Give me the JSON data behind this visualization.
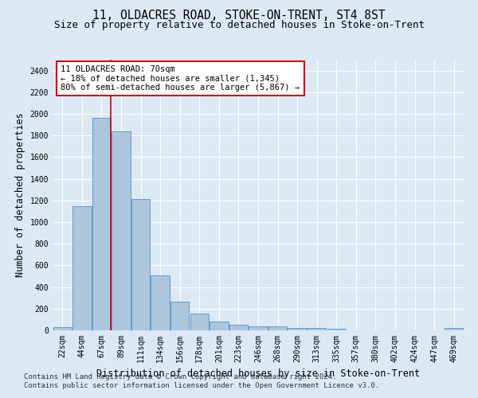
{
  "title": "11, OLDACRES ROAD, STOKE-ON-TRENT, ST4 8ST",
  "subtitle": "Size of property relative to detached houses in Stoke-on-Trent",
  "xlabel": "Distribution of detached houses by size in Stoke-on-Trent",
  "ylabel": "Number of detached properties",
  "bin_labels": [
    "22sqm",
    "44sqm",
    "67sqm",
    "89sqm",
    "111sqm",
    "134sqm",
    "156sqm",
    "178sqm",
    "201sqm",
    "223sqm",
    "246sqm",
    "268sqm",
    "290sqm",
    "313sqm",
    "335sqm",
    "357sqm",
    "380sqm",
    "402sqm",
    "424sqm",
    "447sqm",
    "469sqm"
  ],
  "bar_values": [
    30,
    1150,
    1960,
    1840,
    1210,
    510,
    265,
    155,
    80,
    50,
    40,
    40,
    20,
    20,
    15,
    0,
    0,
    0,
    0,
    0,
    20
  ],
  "bar_color": "#aec6dc",
  "bar_edge_color": "#5b9bd5",
  "annotation_text": "11 OLDACRES ROAD: 70sqm\n← 18% of detached houses are smaller (1,345)\n80% of semi-detached houses are larger (5,867) →",
  "annotation_box_color": "#ffffff",
  "annotation_box_edge_color": "#cc0000",
  "ylim": [
    0,
    2500
  ],
  "yticks": [
    0,
    200,
    400,
    600,
    800,
    1000,
    1200,
    1400,
    1600,
    1800,
    2000,
    2200,
    2400
  ],
  "footer_line1": "Contains HM Land Registry data © Crown copyright and database right 2024.",
  "footer_line2": "Contains public sector information licensed under the Open Government Licence v3.0.",
  "title_fontsize": 10.5,
  "subtitle_fontsize": 9,
  "axis_label_fontsize": 8.5,
  "tick_fontsize": 7,
  "annotation_fontsize": 7.5,
  "footer_fontsize": 6.5,
  "grid_color": "#ffffff",
  "background_color": "#dce9f5",
  "figure_bg_color": "#dce9f5"
}
